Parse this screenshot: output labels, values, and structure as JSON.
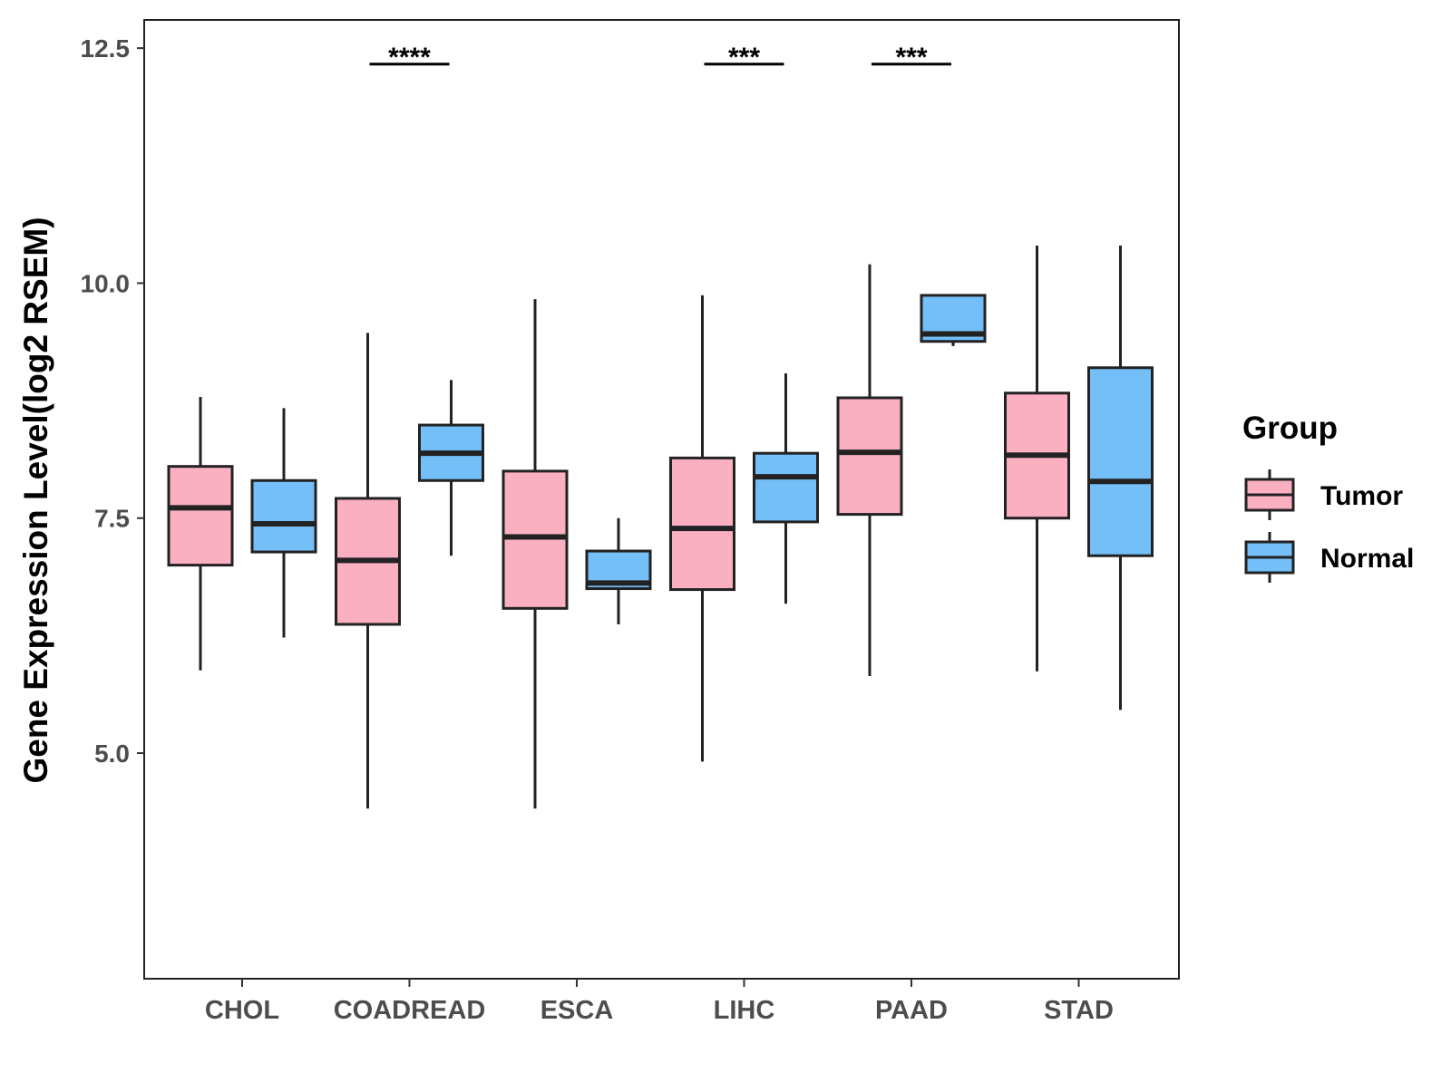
{
  "chart_data": {
    "type": "boxplot",
    "title": "",
    "xlabel": "",
    "ylabel": "Gene Expression Level(log2 RSEM)",
    "ylim": [
      2.6,
      12.8
    ],
    "yticks": [
      5.0,
      7.5,
      10.0,
      12.5
    ],
    "ytick_labels": [
      "5.0",
      "7.5",
      "10.0",
      "12.5"
    ],
    "grid": false,
    "legend": {
      "title": "Group",
      "position": "right",
      "entries": [
        {
          "name": "Tumor",
          "color": "#FBB0C2"
        },
        {
          "name": "Normal",
          "color": "#74BFF7"
        }
      ]
    },
    "categories": [
      "CHOL",
      "COADREAD",
      "ESCA",
      "LIHC",
      "PAAD",
      "STAD"
    ],
    "series": [
      {
        "name": "Tumor",
        "color": "#FBB0C2",
        "boxes": [
          {
            "min": 5.88,
            "q1": 7.0,
            "median": 7.61,
            "q3": 8.05,
            "max": 8.79
          },
          {
            "min": 4.41,
            "q1": 6.37,
            "median": 7.05,
            "q3": 7.71,
            "max": 9.47
          },
          {
            "min": 4.41,
            "q1": 6.54,
            "median": 7.3,
            "q3": 8.0,
            "max": 9.83
          },
          {
            "min": 4.91,
            "q1": 6.74,
            "median": 7.39,
            "q3": 8.14,
            "max": 9.87
          },
          {
            "min": 5.82,
            "q1": 7.54,
            "median": 8.2,
            "q3": 8.78,
            "max": 10.2
          },
          {
            "min": 5.87,
            "q1": 7.5,
            "median": 8.17,
            "q3": 8.83,
            "max": 10.4
          }
        ]
      },
      {
        "name": "Normal",
        "color": "#74BFF7",
        "boxes": [
          {
            "min": 6.23,
            "q1": 7.14,
            "median": 7.44,
            "q3": 7.9,
            "max": 8.67
          },
          {
            "min": 7.1,
            "q1": 7.9,
            "median": 8.19,
            "q3": 8.49,
            "max": 8.97
          },
          {
            "min": 6.37,
            "q1": 6.75,
            "median": 6.81,
            "q3": 7.15,
            "max": 7.5
          },
          {
            "min": 6.59,
            "q1": 7.46,
            "median": 7.94,
            "q3": 8.19,
            "max": 9.04
          },
          {
            "min": 9.33,
            "q1": 9.38,
            "median": 9.46,
            "q3": 9.87,
            "max": 9.87
          },
          {
            "min": 5.46,
            "q1": 7.1,
            "median": 7.89,
            "q3": 9.1,
            "max": 10.4
          }
        ]
      }
    ],
    "annotations": [
      {
        "category": "COADREAD",
        "label": "****",
        "y": 12.33
      },
      {
        "category": "LIHC",
        "label": "***",
        "y": 12.33
      },
      {
        "category": "PAAD",
        "label": "***",
        "y": 12.33
      }
    ]
  }
}
